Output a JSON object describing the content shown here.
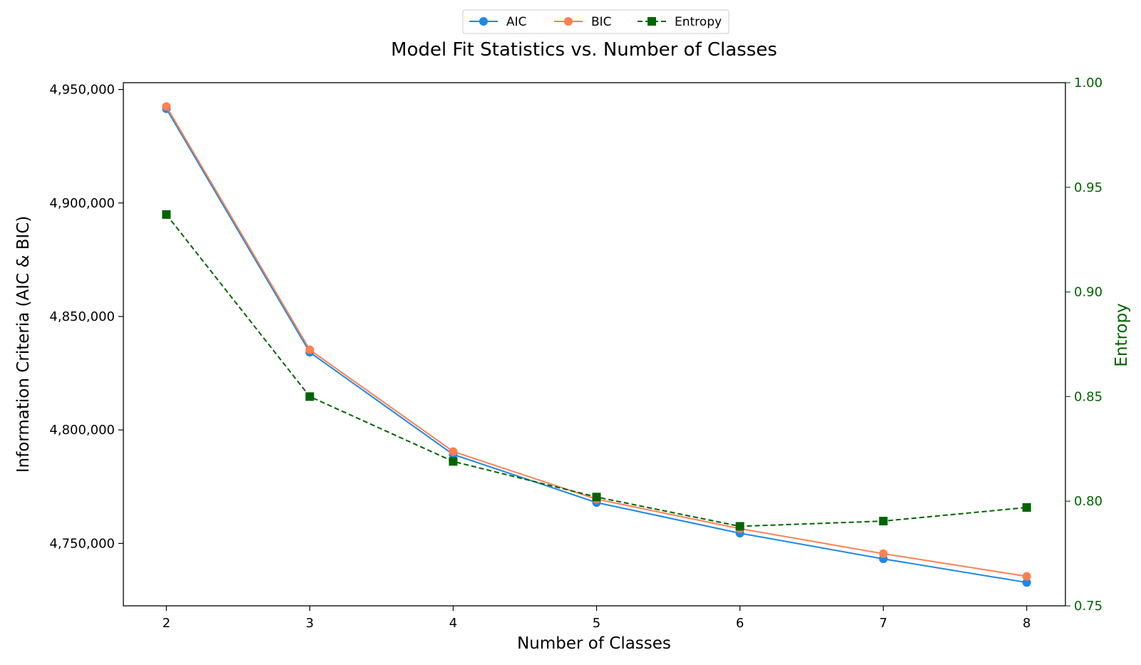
{
  "chart_data": {
    "type": "line",
    "title": "Model Fit Statistics vs. Number of Classes",
    "xlabel": "Number of Classes",
    "ylabel_left": "Information Criteria (AIC & BIC)",
    "ylabel_right": "Entropy",
    "x": [
      2,
      3,
      4,
      5,
      6,
      7,
      8
    ],
    "x_ticks": [
      "2",
      "3",
      "4",
      "5",
      "6",
      "7",
      "8"
    ],
    "xlim": [
      1.7,
      8.27
    ],
    "ylim_left": [
      4722500,
      4953000
    ],
    "y_ticks_left": [
      "4,750,000",
      "4,800,000",
      "4,850,000",
      "4,900,000",
      "4,950,000"
    ],
    "y_ticks_left_values": [
      4750000,
      4800000,
      4850000,
      4900000,
      4950000
    ],
    "ylim_right": [
      0.75,
      1.0
    ],
    "y_ticks_right": [
      "0.75",
      "0.80",
      "0.85",
      "0.90",
      "0.95",
      "1.00"
    ],
    "y_ticks_right_values": [
      0.75,
      0.8,
      0.85,
      0.9,
      0.95,
      1.0
    ],
    "grid": false,
    "legend_position": "top-center",
    "series": [
      {
        "name": "AIC",
        "axis": "left",
        "color": "#1E88E5",
        "marker": "circle",
        "line": "solid",
        "values": [
          4941500,
          4834200,
          4789200,
          4768000,
          4754500,
          4743200,
          4732800
        ]
      },
      {
        "name": "BIC",
        "axis": "left",
        "color": "#FF7F50",
        "marker": "circle",
        "line": "solid",
        "values": [
          4942500,
          4835300,
          4790500,
          4769500,
          4756500,
          4745500,
          4735500
        ]
      },
      {
        "name": "Entropy",
        "axis": "right",
        "color": "#006400",
        "marker": "square",
        "line": "dashed",
        "values": [
          0.937,
          0.85,
          0.819,
          0.802,
          0.788,
          0.7905,
          0.797
        ]
      }
    ]
  }
}
